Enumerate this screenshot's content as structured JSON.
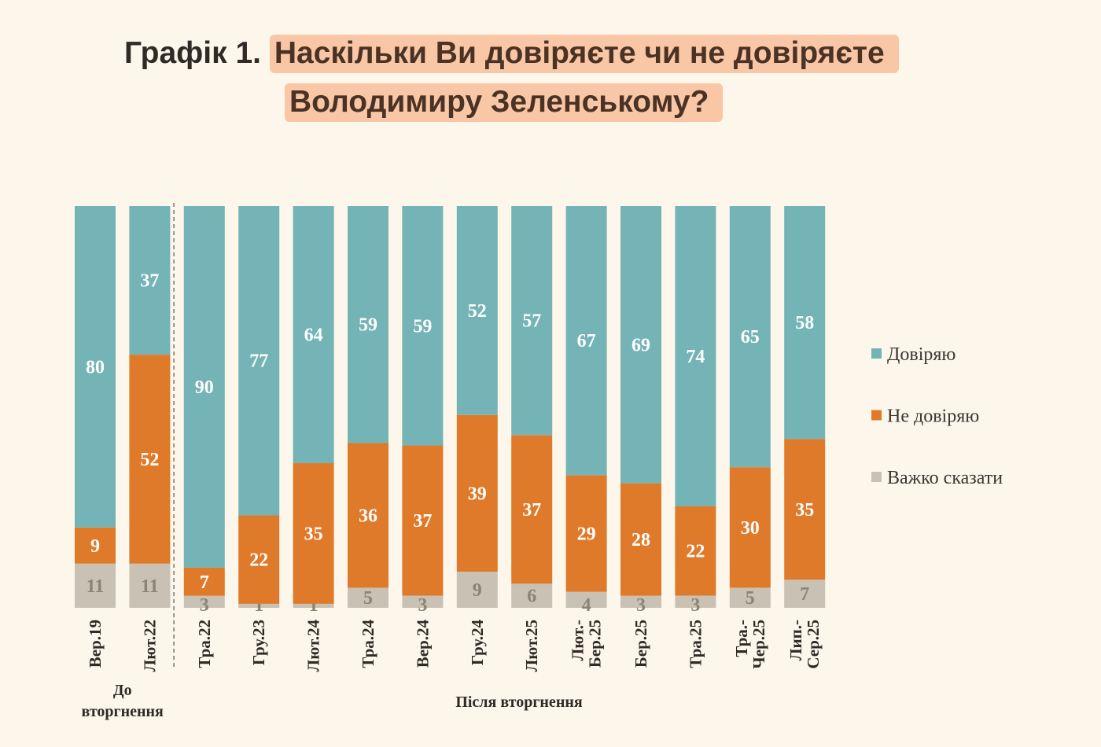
{
  "title": {
    "prefix": "Графік 1.",
    "line1": "Наскільки Ви довіряєте чи не довіряєте",
    "line2": "Володимиру Зеленському?"
  },
  "chart_data": {
    "type": "bar",
    "stacked": true,
    "orientation": "vertical",
    "title": "Графік 1. Наскільки Ви довіряєте чи не довіряєте Володимиру Зеленському?",
    "categories": [
      [
        "Вер.19"
      ],
      [
        "Лют.22"
      ],
      [
        "Тра.22"
      ],
      [
        "Гру.23"
      ],
      [
        "Лют.24"
      ],
      [
        "Тра.24"
      ],
      [
        "Вер.24"
      ],
      [
        "Гру.24"
      ],
      [
        "Лют.25"
      ],
      [
        "Лют.-",
        "Бер.25"
      ],
      [
        "Бер.25"
      ],
      [
        "Тра.25"
      ],
      [
        "Тра.-",
        "Чер.25"
      ],
      [
        "Лип.-",
        "Сер.25"
      ]
    ],
    "groups": [
      {
        "label": "До вторгнення",
        "count": 2
      },
      {
        "label": "Після вторгнення",
        "count": 12
      }
    ],
    "series": [
      {
        "name": "Довіряю",
        "color": "#74b4b6",
        "values": [
          80,
          37,
          90,
          77,
          64,
          59,
          59,
          52,
          57,
          67,
          69,
          74,
          65,
          58
        ]
      },
      {
        "name": "Не довіряю",
        "color": "#e07a2b",
        "values": [
          9,
          52,
          7,
          22,
          35,
          36,
          37,
          39,
          37,
          29,
          28,
          22,
          30,
          35
        ]
      },
      {
        "name": "Важко сказати",
        "color": "#c9c1b3",
        "values": [
          11,
          11,
          3,
          1,
          1,
          5,
          3,
          9,
          6,
          4,
          3,
          3,
          5,
          7
        ]
      }
    ],
    "ylim": [
      0,
      100
    ],
    "legend": "right",
    "grid": false
  }
}
